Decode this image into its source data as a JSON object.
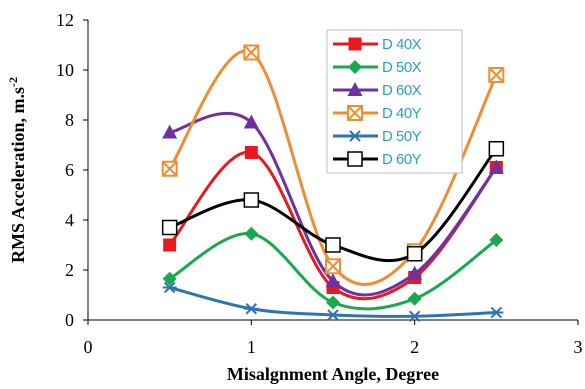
{
  "chart_data": {
    "type": "line",
    "x": [
      0.5,
      1,
      1.5,
      2,
      2.5
    ],
    "xlim": [
      0,
      3
    ],
    "ylim": [
      0,
      12
    ],
    "xticks": [
      "0",
      "1",
      "2",
      "3"
    ],
    "yticks": [
      "0",
      "2",
      "4",
      "6",
      "8",
      "10",
      "12"
    ],
    "xlabel": "Misalgnment Angle, Degree",
    "ylabel_main": "RMS Acceleration, m.s",
    "ylabel_sup": "-2",
    "grid": "none",
    "legend_position": "top-right",
    "series": [
      {
        "name": "D 40X",
        "values": [
          3.0,
          6.7,
          1.3,
          1.7,
          6.1
        ],
        "color": "#e8191e",
        "marker": "square"
      },
      {
        "name": "D 50X",
        "values": [
          1.65,
          3.45,
          0.7,
          0.85,
          3.2
        ],
        "color": "#18a94c",
        "marker": "diamond"
      },
      {
        "name": "D 60X",
        "values": [
          7.5,
          7.9,
          1.55,
          1.85,
          6.1
        ],
        "color": "#7030a0",
        "marker": "triangle"
      },
      {
        "name": "D 40Y",
        "values": [
          6.05,
          10.7,
          2.15,
          2.75,
          9.8
        ],
        "color": "#f28c32",
        "marker": "boxx"
      },
      {
        "name": "D 50Y",
        "values": [
          1.3,
          0.45,
          0.2,
          0.15,
          0.3
        ],
        "color": "#2e74b5",
        "marker": "asterisk"
      },
      {
        "name": "D 60Y",
        "values": [
          3.7,
          4.8,
          3.0,
          2.65,
          6.85
        ],
        "color": "#000000",
        "marker": "open-square"
      }
    ]
  }
}
